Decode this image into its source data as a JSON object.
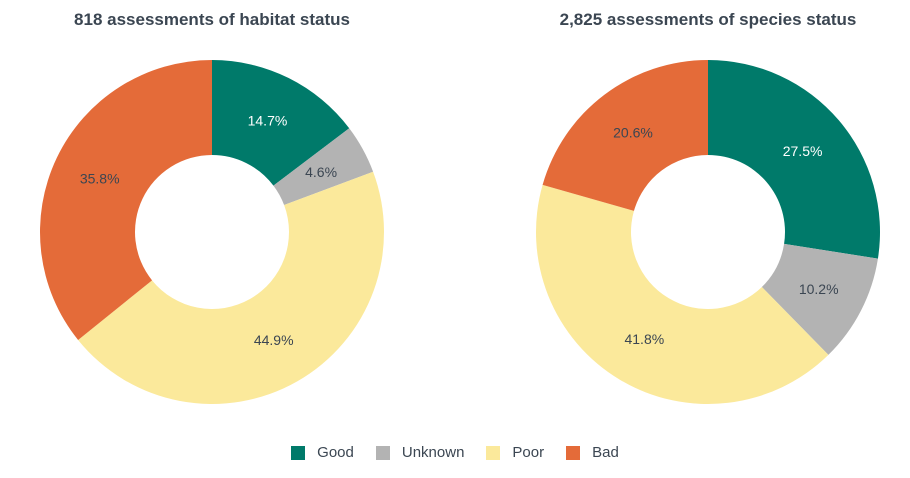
{
  "chart_data": [
    {
      "type": "pie",
      "title": "818 assessments of habitat status",
      "categories": [
        "Good",
        "Unknown",
        "Poor",
        "Bad"
      ],
      "values": [
        14.7,
        4.6,
        44.9,
        35.8
      ],
      "labels": [
        "14.7%",
        "4.6%",
        "44.9%",
        "35.8%"
      ],
      "donut": true
    },
    {
      "type": "pie",
      "title": "2,825 assessments of species status",
      "categories": [
        "Good",
        "Unknown",
        "Poor",
        "Bad"
      ],
      "values": [
        27.5,
        10.2,
        41.8,
        20.6
      ],
      "labels": [
        "27.5%",
        "10.2%",
        "41.8%",
        "20.6%"
      ],
      "donut": true
    }
  ],
  "legend": {
    "items": [
      "Good",
      "Unknown",
      "Poor",
      "Bad"
    ],
    "colors": [
      "#007a6a",
      "#b3b3b3",
      "#fbe99b",
      "#e46b39"
    ]
  },
  "label_colors": [
    "#ffffff",
    "#3b4652",
    "#3b4652",
    "#3b4652"
  ]
}
